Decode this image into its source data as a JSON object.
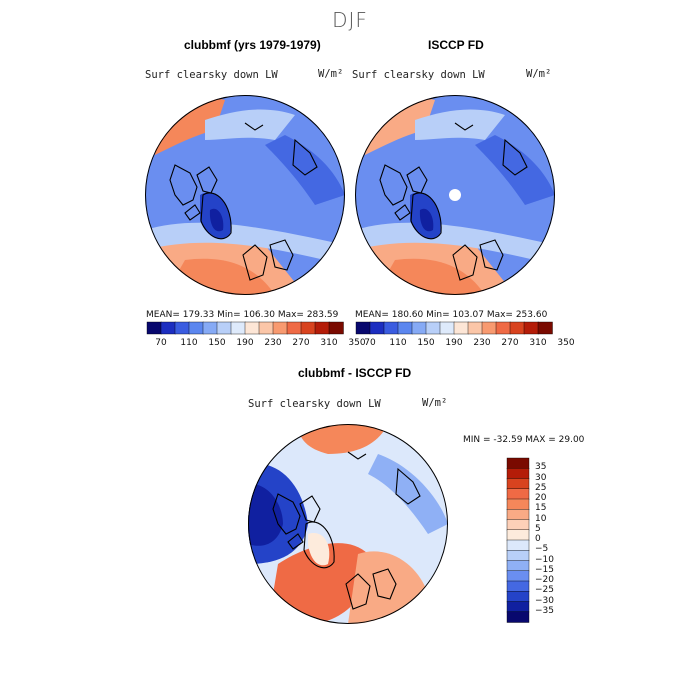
{
  "title": "DJF",
  "panels": [
    {
      "title": "clubbmf (yrs 1979-1979)",
      "variable": "Surf clearsky down LW",
      "units": "W/m²",
      "stats": "MEAN= 179.33  Min= 106.30  Max= 283.59"
    },
    {
      "title": "ISCCP FD",
      "variable": "Surf clearsky down LW",
      "units": "W/m²",
      "stats": "MEAN= 180.60  Min= 103.07  Max= 253.60"
    }
  ],
  "colorbar_top": {
    "labels": [
      "70",
      "110",
      "150",
      "190",
      "230",
      "270",
      "310",
      "350"
    ],
    "colors": [
      "#08086e",
      "#1c2ec0",
      "#3a5ce0",
      "#5b86ef",
      "#86aaf5",
      "#b8cff8",
      "#deeafb",
      "#fde6d6",
      "#fbc6a8",
      "#f89a70",
      "#ef6a45",
      "#d8431f",
      "#b41c08",
      "#7a0a00"
    ]
  },
  "diff_panel": {
    "title": "clubbmf - ISCCP FD",
    "variable": "Surf clearsky down LW",
    "units": "W/m²",
    "stats": "MIN = -32.59 MAX =  29.00"
  },
  "colorbar_diff": {
    "labels": [
      "35",
      "30",
      "25",
      "20",
      "15",
      "10",
      "5",
      "0",
      "−5",
      "−10",
      "−15",
      "−20",
      "−25",
      "−30",
      "−35"
    ],
    "colors": [
      "#7a0a00",
      "#b41c08",
      "#d8431f",
      "#ef6a45",
      "#f5875a",
      "#f9aa85",
      "#fdd0b8",
      "#fdebdc",
      "#dce8fb",
      "#b8cff8",
      "#8fb0f5",
      "#6a8ef0",
      "#4468e2",
      "#2443c8",
      "#1020a0",
      "#08086e"
    ]
  }
}
